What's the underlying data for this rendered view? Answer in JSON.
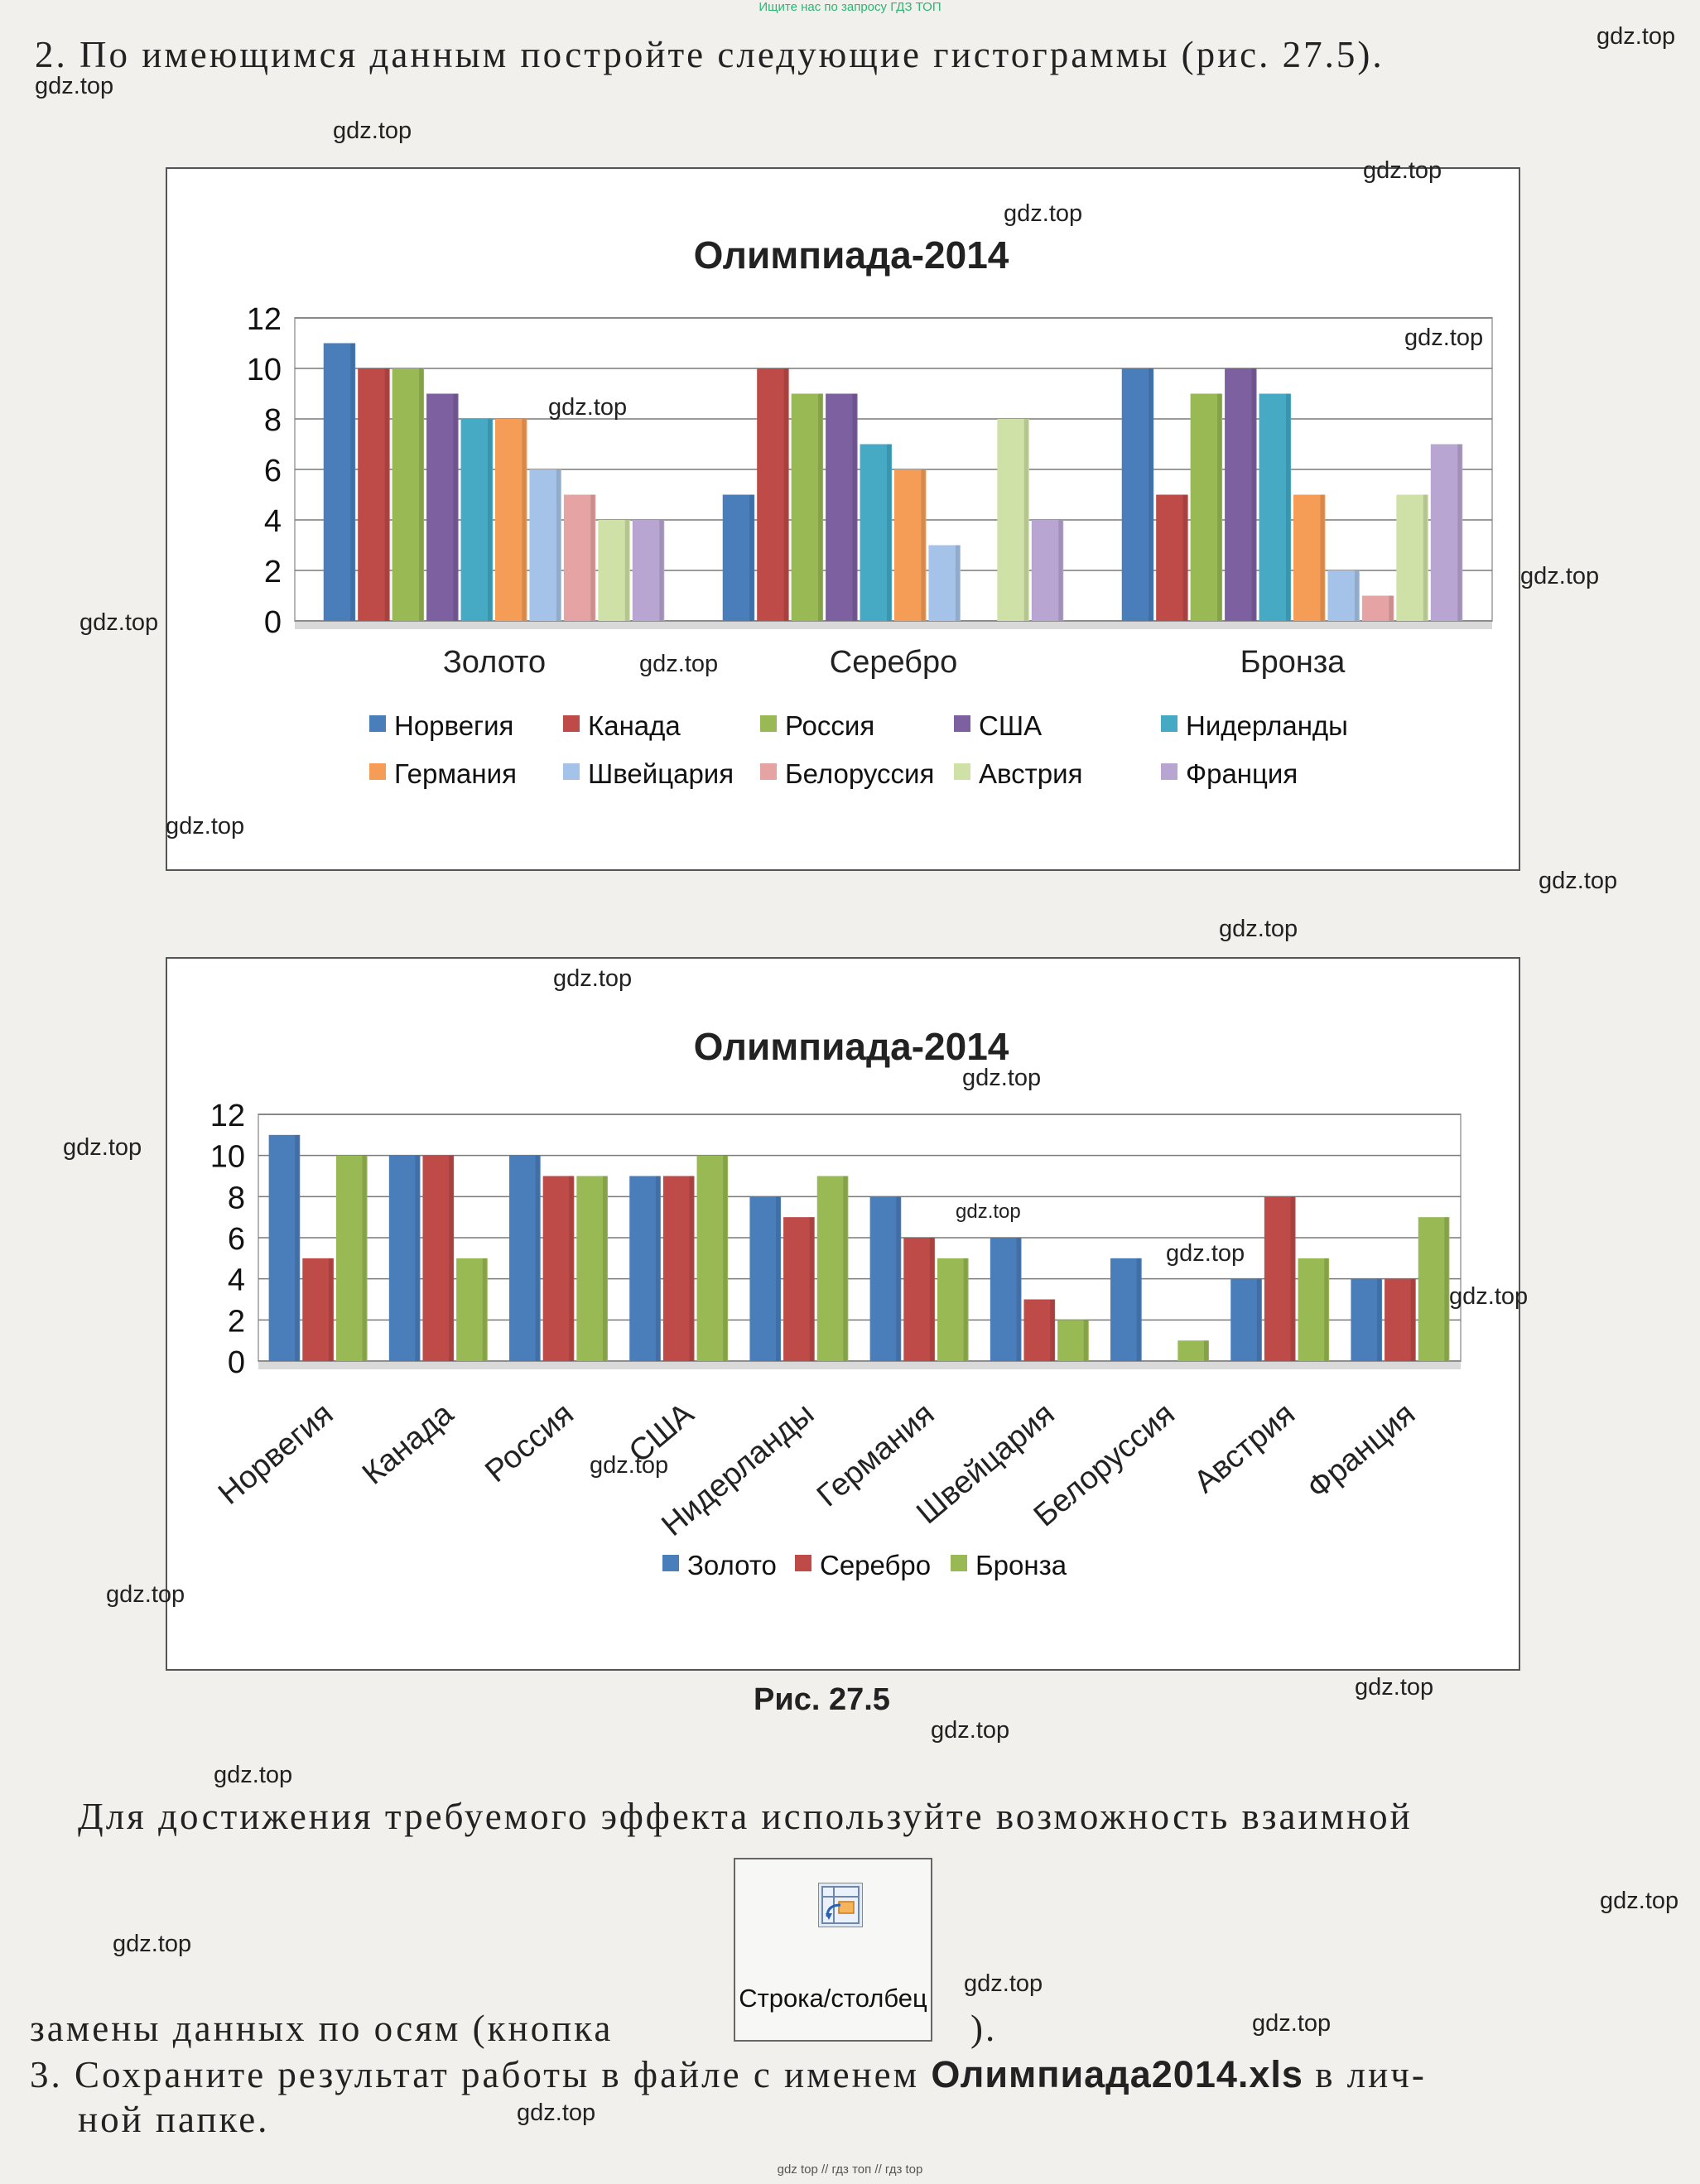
{
  "banner_top": "Ищите нас по запросу ГДЗ ТОП",
  "banner_bottom": "gdz top // гдз топ // гдз top",
  "watermark": "gdz.top",
  "task2_heading": "2. По имеющимся данным постройте следующие гистограммы (рис. 27.5).",
  "figure_caption": "Рис. 27.5",
  "para_line1": "Для достижения требуемого эффекта используйте возможность взаимной",
  "para_line2_start": "замены данных по осям (кнопка",
  "para_line2_end": ").",
  "rowcol_button_label": "Строка/столбец",
  "task3_start": "3. Сохраните результат работы в файле с именем ",
  "task3_filename": "Олимпиада2014.xls",
  "task3_end": " в лич-",
  "task3_line2": "ной папке.",
  "chart_data": [
    {
      "type": "bar",
      "title": "Олимпиада-2014",
      "categories": [
        "Золото",
        "Серебро",
        "Бронза"
      ],
      "ylim": [
        0,
        12
      ],
      "yticks": [
        0,
        2,
        4,
        6,
        8,
        10,
        12
      ],
      "grid": true,
      "legend_position": "bottom",
      "series": [
        {
          "name": "Норвегия",
          "color": "#4a7ebb",
          "values": [
            11,
            5,
            10
          ]
        },
        {
          "name": "Канада",
          "color": "#be4b48",
          "values": [
            10,
            10,
            5
          ]
        },
        {
          "name": "Россия",
          "color": "#98b954",
          "values": [
            10,
            9,
            9
          ]
        },
        {
          "name": "США",
          "color": "#7d60a0",
          "values": [
            9,
            9,
            10
          ]
        },
        {
          "name": "Нидерланды",
          "color": "#46aac5",
          "values": [
            8,
            7,
            9
          ]
        },
        {
          "name": "Германия",
          "color": "#f59d56",
          "values": [
            8,
            6,
            5
          ]
        },
        {
          "name": "Швейцария",
          "color": "#a5c3e8",
          "values": [
            6,
            3,
            2
          ]
        },
        {
          "name": "Белоруссия",
          "color": "#e5a3a4",
          "values": [
            5,
            0,
            1
          ]
        },
        {
          "name": "Австрия",
          "color": "#cfe1a7",
          "values": [
            4,
            8,
            5
          ]
        },
        {
          "name": "Франция",
          "color": "#b8a5d2",
          "values": [
            4,
            4,
            7
          ]
        }
      ]
    },
    {
      "type": "bar",
      "title": "Олимпиада-2014",
      "categories": [
        "Норвегия",
        "Канада",
        "Россия",
        "США",
        "Нидерланды",
        "Германия",
        "Швейцария",
        "Белоруссия",
        "Австрия",
        "Франция"
      ],
      "ylim": [
        0,
        12
      ],
      "yticks": [
        0,
        2,
        4,
        6,
        8,
        10,
        12
      ],
      "grid": true,
      "legend_position": "bottom",
      "series": [
        {
          "name": "Золото",
          "color": "#4a7ebb",
          "values": [
            11,
            10,
            10,
            9,
            8,
            8,
            6,
            5,
            4,
            4
          ]
        },
        {
          "name": "Серебро",
          "color": "#be4b48",
          "values": [
            5,
            10,
            9,
            9,
            7,
            6,
            3,
            0,
            8,
            4
          ]
        },
        {
          "name": "Бронза",
          "color": "#98b954",
          "values": [
            10,
            5,
            9,
            10,
            9,
            5,
            2,
            1,
            5,
            7
          ]
        }
      ]
    }
  ]
}
